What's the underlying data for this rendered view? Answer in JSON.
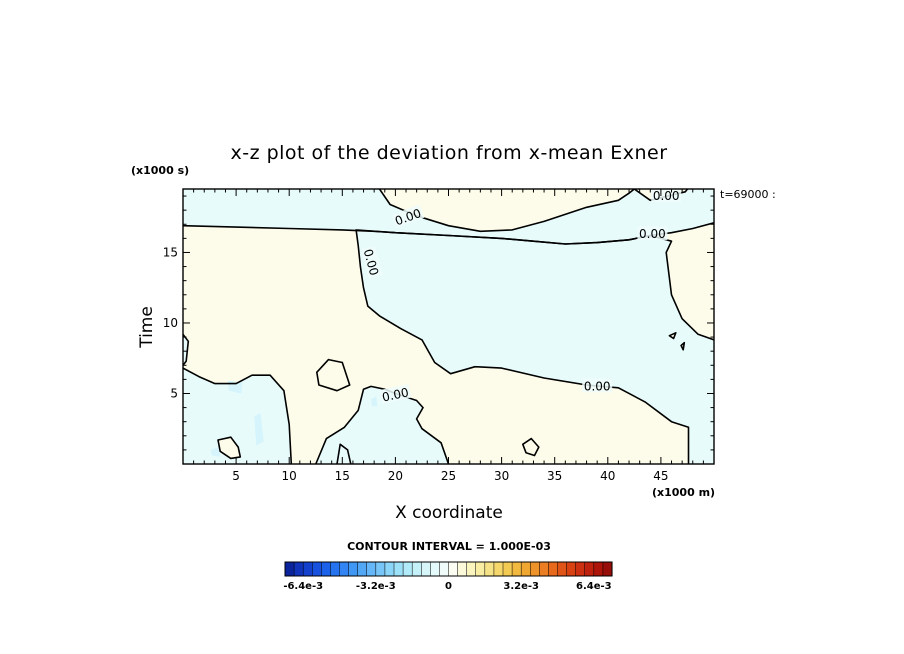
{
  "chart_data": {
    "type": "contour",
    "title": "x-z plot of the deviation from x-mean Exner",
    "xlabel": "X coordinate",
    "ylabel": "Time",
    "x_unit_label": "(x1000 m)",
    "y_unit_label": "(x1000 s)",
    "time_stamp": "t=69000 :",
    "xlim": [
      0,
      50
    ],
    "ylim": [
      0,
      19.5
    ],
    "x_ticks": [
      5,
      10,
      15,
      20,
      25,
      30,
      35,
      40,
      45
    ],
    "y_ticks": [
      5,
      10,
      15
    ],
    "grid": false,
    "contour_interval_text": "CONTOUR INTERVAL = 1.000E-03",
    "contour_label": "0.00",
    "contour_labels": [
      {
        "text": "0.00",
        "x": 21.2,
        "y": 17.5,
        "angle": 20
      },
      {
        "text": "0.00",
        "x": 17.7,
        "y": 14.3,
        "angle": -75
      },
      {
        "text": "0.00",
        "x": 20.0,
        "y": 4.9,
        "angle": 12
      },
      {
        "text": "0.00",
        "x": 39.0,
        "y": 5.5,
        "angle": 0
      },
      {
        "text": "0.00",
        "x": 45.5,
        "y": 19.0,
        "angle": 0
      },
      {
        "text": "0.00",
        "x": 44.2,
        "y": 16.3,
        "angle": 0
      }
    ],
    "regions": [
      {
        "sign": "negative",
        "points": [
          [
            0,
            16.9
          ],
          [
            5,
            16.8
          ],
          [
            10,
            16.7
          ],
          [
            15,
            16.6
          ],
          [
            18,
            16.5
          ],
          [
            20,
            16.4
          ],
          [
            25,
            16.2
          ],
          [
            30,
            16.0
          ],
          [
            33,
            15.8
          ],
          [
            36,
            15.6
          ],
          [
            39,
            15.7
          ],
          [
            42,
            15.9
          ],
          [
            44,
            16.2
          ],
          [
            46,
            16.4
          ],
          [
            48,
            16.7
          ],
          [
            50,
            17.1
          ],
          [
            50,
            19.5
          ],
          [
            0,
            19.5
          ]
        ]
      },
      {
        "sign": "positive",
        "points": [
          [
            18.5,
            19.5
          ],
          [
            19.5,
            18.4
          ],
          [
            22,
            17.6
          ],
          [
            25,
            16.9
          ],
          [
            28,
            16.5
          ],
          [
            31,
            16.6
          ],
          [
            34,
            17.2
          ],
          [
            38,
            18.2
          ],
          [
            41,
            18.7
          ],
          [
            42,
            19.2
          ],
          [
            42.5,
            19.5
          ]
        ]
      },
      {
        "sign": "positive",
        "points": [
          [
            42.5,
            19.5
          ],
          [
            44,
            18.7
          ],
          [
            45.6,
            19.0
          ],
          [
            47.3,
            19.3
          ],
          [
            47.5,
            19.5
          ]
        ]
      },
      {
        "sign": "negative",
        "points": [
          [
            16.3,
            16.6
          ],
          [
            16.5,
            15.5
          ],
          [
            16.7,
            14.0
          ],
          [
            17.0,
            12.5
          ],
          [
            17.4,
            11.2
          ],
          [
            18.5,
            10.5
          ],
          [
            20.5,
            9.6
          ],
          [
            22.5,
            8.8
          ],
          [
            23.7,
            7.2
          ],
          [
            25.2,
            6.4
          ],
          [
            27.5,
            6.9
          ],
          [
            30.0,
            6.8
          ],
          [
            34.0,
            6.1
          ],
          [
            38.0,
            5.6
          ],
          [
            41.0,
            5.4
          ],
          [
            43.5,
            4.4
          ],
          [
            46.0,
            3.0
          ],
          [
            47.6,
            2.6
          ],
          [
            47.6,
            0
          ],
          [
            50,
            0
          ],
          [
            50,
            8.8
          ],
          [
            48.5,
            9.2
          ],
          [
            47.0,
            10.3
          ],
          [
            46.0,
            12.0
          ],
          [
            45.5,
            15.0
          ],
          [
            46.0,
            15.8
          ],
          [
            44,
            16.2
          ],
          [
            42,
            15.9
          ],
          [
            39,
            15.7
          ],
          [
            36,
            15.6
          ],
          [
            33,
            15.8
          ],
          [
            30,
            16.0
          ],
          [
            25,
            16.2
          ],
          [
            20,
            16.4
          ]
        ]
      },
      {
        "sign": "negative",
        "points": [
          [
            0,
            9.2
          ],
          [
            0.5,
            8.7
          ],
          [
            0.3,
            7.3
          ],
          [
            0,
            7.0
          ]
        ]
      },
      {
        "sign": "negative",
        "points": [
          [
            0,
            6.8
          ],
          [
            1.5,
            6.2
          ],
          [
            3.0,
            5.7
          ],
          [
            5.0,
            5.7
          ],
          [
            6.5,
            6.3
          ],
          [
            8.2,
            6.3
          ],
          [
            9.5,
            5.2
          ],
          [
            10.0,
            2.8
          ],
          [
            10.2,
            0
          ],
          [
            0,
            0
          ]
        ]
      },
      {
        "sign": "negative",
        "points": [
          [
            12.5,
            0
          ],
          [
            13.5,
            1.8
          ],
          [
            15.2,
            2.6
          ],
          [
            16.5,
            3.8
          ],
          [
            17.0,
            5.3
          ],
          [
            17.7,
            5.5
          ],
          [
            19.0,
            5.3
          ],
          [
            20.0,
            5.0
          ],
          [
            22.0,
            4.5
          ],
          [
            22.6,
            4.0
          ],
          [
            22.0,
            3.2
          ],
          [
            22.5,
            2.5
          ],
          [
            24.3,
            1.5
          ],
          [
            25.0,
            0
          ]
        ]
      },
      {
        "sign": "negative",
        "points": [
          [
            14.5,
            0
          ],
          [
            14.8,
            1.4
          ],
          [
            15.5,
            1.0
          ],
          [
            15.8,
            0
          ]
        ]
      },
      {
        "sign": "positive",
        "points": [
          [
            12.6,
            6.5
          ],
          [
            13.7,
            7.4
          ],
          [
            15.0,
            7.2
          ],
          [
            15.7,
            5.6
          ],
          [
            14.5,
            5.2
          ],
          [
            12.8,
            5.6
          ]
        ]
      },
      {
        "sign": "positive",
        "points": [
          [
            3.3,
            1.7
          ],
          [
            4.5,
            1.9
          ],
          [
            5.2,
            1.2
          ],
          [
            5.4,
            0.5
          ],
          [
            4.5,
            0.4
          ],
          [
            3.5,
            0.9
          ]
        ]
      },
      {
        "sign": "positive",
        "points": [
          [
            32.0,
            1.4
          ],
          [
            32.8,
            1.8
          ],
          [
            33.5,
            1.2
          ],
          [
            33.1,
            0.6
          ],
          [
            32.3,
            0.8
          ]
        ]
      },
      {
        "sign": "positive",
        "points": [
          [
            45.8,
            9.1
          ],
          [
            46.4,
            9.3
          ],
          [
            46.2,
            8.9
          ]
        ]
      },
      {
        "sign": "positive",
        "points": [
          [
            46.9,
            8.4
          ],
          [
            47.2,
            8.6
          ],
          [
            47.1,
            8.1
          ]
        ]
      }
    ],
    "shading_scale": {
      "min": -0.0072,
      "max": 0.0072,
      "tick_labels": [
        "-6.4e-3",
        "-3.2e-3",
        "0",
        "3.2e-3",
        "6.4e-3"
      ],
      "tick_values": [
        -0.0064,
        -0.0032,
        0,
        0.0032,
        0.0064
      ],
      "colors": [
        "#0a1d8c",
        "#1032b8",
        "#1447d6",
        "#1a5ee8",
        "#2878ef",
        "#3c92f4",
        "#55aaf6",
        "#6fc0f7",
        "#8ad5f8",
        "#a6e6f8",
        "#c2f1f8",
        "#dcf8fa",
        "#eefcfc",
        "#fdfdf0",
        "#fbf6c8",
        "#f8eca0",
        "#f6dd78",
        "#f4cb52",
        "#f1b238",
        "#ee962a",
        "#ea7820",
        "#e25a18",
        "#d63e12",
        "#c4250e",
        "#ac140b",
        "#8c0c09"
      ],
      "colors_note": "fine steps rendered by script",
      "positive_fill": "#fdfcea",
      "negative_fill": "#e8fbfb",
      "faint_negative_fill": "#d6f4fb"
    },
    "faint_patches": [
      [
        [
          4.2,
          5.9
        ],
        [
          5.6,
          5.8
        ],
        [
          5.5,
          5.0
        ],
        [
          4.3,
          5.2
        ]
      ],
      [
        [
          6.7,
          3.4
        ],
        [
          7.3,
          3.6
        ],
        [
          7.6,
          1.6
        ],
        [
          6.9,
          1.3
        ]
      ],
      [
        [
          2.6,
          1.0
        ],
        [
          3.4,
          1.2
        ],
        [
          3.5,
          0.5
        ],
        [
          2.7,
          0.6
        ]
      ],
      [
        [
          17.7,
          4.6
        ],
        [
          18.2,
          4.8
        ],
        [
          18.3,
          4.1
        ],
        [
          17.8,
          4.1
        ]
      ]
    ]
  }
}
